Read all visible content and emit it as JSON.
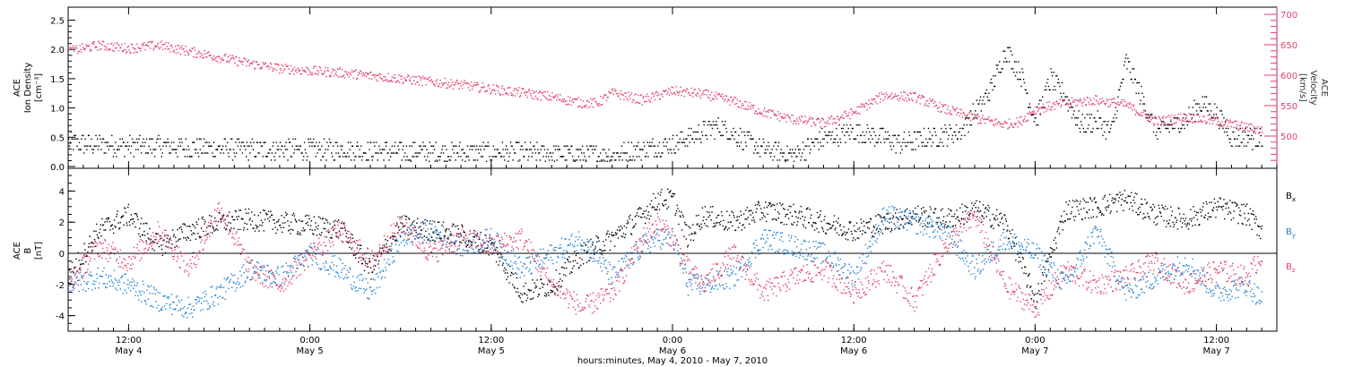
{
  "colors": {
    "black": "#000000",
    "blue": "#1f7fd4",
    "pink": "#e0406a",
    "axis": "#000000"
  },
  "chart_data": [
    {
      "type": "scatter",
      "panel": "top",
      "ylabel_lines": [
        "ACE",
        "Ion Density",
        "[cm⁻³]"
      ],
      "ylabel_right_lines": [
        "ACE",
        "Velocity",
        "[km/s]"
      ],
      "ylim": [
        0,
        2.6
      ],
      "yticks": [
        "0.0",
        "0.5",
        "1.0",
        "1.5",
        "2.0",
        "2.5"
      ],
      "ylim_right": [
        450,
        700
      ],
      "yticks_right": [
        "500",
        "550",
        "600",
        "650",
        "700"
      ],
      "xlim_hours": [
        0,
        80
      ],
      "series": [
        {
          "color": "black",
          "axis": "left",
          "keypoints": [
            [
              0,
              0.4
            ],
            [
              6,
              0.35
            ],
            [
              12,
              0.3
            ],
            [
              18,
              0.3
            ],
            [
              24,
              0.25
            ],
            [
              30,
              0.25
            ],
            [
              36,
              0.2
            ],
            [
              40,
              0.4
            ],
            [
              43,
              0.7
            ],
            [
              46,
              0.3
            ],
            [
              48,
              0.2
            ],
            [
              50,
              0.5
            ],
            [
              52,
              0.6
            ],
            [
              54,
              0.5
            ],
            [
              55,
              0.4
            ],
            [
              57,
              0.5
            ],
            [
              59,
              0.6
            ],
            [
              61,
              1.3
            ],
            [
              62,
              2.0
            ],
            [
              63,
              1.6
            ],
            [
              64,
              0.8
            ],
            [
              65,
              1.5
            ],
            [
              66,
              1.2
            ],
            [
              67,
              0.7
            ],
            [
              68,
              0.8
            ],
            [
              69,
              0.6
            ],
            [
              70,
              1.8
            ],
            [
              71,
              1.2
            ],
            [
              72,
              0.6
            ],
            [
              73,
              0.7
            ],
            [
              74,
              0.8
            ],
            [
              75,
              1.1
            ],
            [
              76,
              0.9
            ],
            [
              77,
              0.5
            ],
            [
              79,
              0.5
            ]
          ]
        },
        {
          "color": "pink",
          "axis": "right",
          "keypoints": [
            [
              0,
              640
            ],
            [
              2,
              650
            ],
            [
              4,
              645
            ],
            [
              6,
              650
            ],
            [
              8,
              640
            ],
            [
              10,
              630
            ],
            [
              12,
              620
            ],
            [
              14,
              612
            ],
            [
              16,
              608
            ],
            [
              18,
              605
            ],
            [
              20,
              600
            ],
            [
              22,
              595
            ],
            [
              24,
              590
            ],
            [
              26,
              585
            ],
            [
              28,
              578
            ],
            [
              30,
              572
            ],
            [
              32,
              565
            ],
            [
              34,
              555
            ],
            [
              35,
              555
            ],
            [
              36,
              572
            ],
            [
              38,
              560
            ],
            [
              40,
              575
            ],
            [
              42,
              570
            ],
            [
              44,
              558
            ],
            [
              46,
              540
            ],
            [
              48,
              528
            ],
            [
              50,
              522
            ],
            [
              52,
              540
            ],
            [
              54,
              568
            ],
            [
              56,
              565
            ],
            [
              58,
              545
            ],
            [
              60,
              530
            ],
            [
              62,
              520
            ],
            [
              63,
              525
            ],
            [
              64,
              545
            ],
            [
              66,
              555
            ],
            [
              68,
              560
            ],
            [
              70,
              552
            ],
            [
              72,
              525
            ],
            [
              74,
              532
            ],
            [
              76,
              525
            ],
            [
              78,
              515
            ],
            [
              79,
              510
            ]
          ]
        }
      ]
    },
    {
      "type": "scatter",
      "panel": "bottom",
      "ylabel_lines": [
        "ACE",
        "B",
        "[nT]"
      ],
      "ylim": [
        -5,
        5
      ],
      "yticks": [
        "-4",
        "-2",
        "0",
        "2",
        "4"
      ],
      "xlim_hours": [
        0,
        80
      ],
      "xticks": [
        {
          "hour": 4,
          "time": "12:00",
          "date": "May 4"
        },
        {
          "hour": 16,
          "time": "0:00",
          "date": "May 5"
        },
        {
          "hour": 28,
          "time": "12:00",
          "date": "May 5"
        },
        {
          "hour": 40,
          "time": "0:00",
          "date": "May 6"
        },
        {
          "hour": 52,
          "time": "12:00",
          "date": "May 6"
        },
        {
          "hour": 64,
          "time": "0:00",
          "date": "May 7"
        },
        {
          "hour": 76,
          "time": "12:00",
          "date": "May 7"
        }
      ],
      "xlabel": "hours:minutes, May  4, 2010 - May  7, 2010",
      "series": [
        {
          "name": "Bx",
          "color": "black",
          "keypoints": [
            [
              0,
              -1.5
            ],
            [
              2,
              1.5
            ],
            [
              4,
              2.5
            ],
            [
              6,
              0.5
            ],
            [
              8,
              1.5
            ],
            [
              10,
              2.0
            ],
            [
              12,
              2.2
            ],
            [
              14,
              2.0
            ],
            [
              16,
              1.8
            ],
            [
              18,
              1.6
            ],
            [
              20,
              -1.0
            ],
            [
              22,
              1.8
            ],
            [
              24,
              1.5
            ],
            [
              26,
              1.2
            ],
            [
              28,
              0.5
            ],
            [
              30,
              -2.5
            ],
            [
              32,
              -2.0
            ],
            [
              34,
              0.0
            ],
            [
              36,
              1.0
            ],
            [
              38,
              2.5
            ],
            [
              39,
              3.5
            ],
            [
              40,
              3.5
            ],
            [
              41,
              1.0
            ],
            [
              42,
              2.5
            ],
            [
              44,
              2.0
            ],
            [
              46,
              2.8
            ],
            [
              48,
              2.5
            ],
            [
              50,
              2.0
            ],
            [
              52,
              1.5
            ],
            [
              54,
              2.0
            ],
            [
              56,
              2.5
            ],
            [
              58,
              2.2
            ],
            [
              60,
              2.8
            ],
            [
              62,
              2.0
            ],
            [
              64,
              -3.0
            ],
            [
              66,
              2.8
            ],
            [
              68,
              3.0
            ],
            [
              70,
              3.5
            ],
            [
              72,
              2.5
            ],
            [
              74,
              2.2
            ],
            [
              76,
              3.0
            ],
            [
              78,
              2.5
            ],
            [
              79,
              1.5
            ]
          ]
        },
        {
          "name": "By",
          "color": "blue",
          "keypoints": [
            [
              0,
              -2.0
            ],
            [
              2,
              -1.5
            ],
            [
              4,
              -2.0
            ],
            [
              6,
              -3.0
            ],
            [
              8,
              -3.5
            ],
            [
              10,
              -2.5
            ],
            [
              12,
              -1.0
            ],
            [
              14,
              -1.5
            ],
            [
              16,
              0.0
            ],
            [
              18,
              -1.0
            ],
            [
              20,
              -2.5
            ],
            [
              22,
              1.0
            ],
            [
              24,
              1.5
            ],
            [
              26,
              0.5
            ],
            [
              28,
              1.0
            ],
            [
              30,
              -1.0
            ],
            [
              32,
              0.0
            ],
            [
              34,
              1.0
            ],
            [
              36,
              -1.5
            ],
            [
              38,
              0.5
            ],
            [
              39,
              1.0
            ],
            [
              40,
              1.0
            ],
            [
              41,
              -2.0
            ],
            [
              42,
              -2.0
            ],
            [
              44,
              -1.5
            ],
            [
              46,
              1.0
            ],
            [
              48,
              0.5
            ],
            [
              50,
              0.0
            ],
            [
              52,
              -1.5
            ],
            [
              54,
              2.5
            ],
            [
              56,
              2.0
            ],
            [
              58,
              1.5
            ],
            [
              60,
              -1.0
            ],
            [
              62,
              1.0
            ],
            [
              64,
              0.0
            ],
            [
              66,
              -2.0
            ],
            [
              68,
              1.5
            ],
            [
              70,
              -2.5
            ],
            [
              72,
              -1.5
            ],
            [
              74,
              -0.5
            ],
            [
              76,
              -2.5
            ],
            [
              78,
              -2.0
            ],
            [
              79,
              -3.0
            ]
          ]
        },
        {
          "name": "Bz",
          "color": "pink",
          "keypoints": [
            [
              0,
              -2.0
            ],
            [
              2,
              0.5
            ],
            [
              4,
              -0.5
            ],
            [
              6,
              1.5
            ],
            [
              8,
              -1.0
            ],
            [
              10,
              3.0
            ],
            [
              12,
              -1.0
            ],
            [
              14,
              -2.0
            ],
            [
              16,
              0.0
            ],
            [
              18,
              1.5
            ],
            [
              20,
              -0.5
            ],
            [
              22,
              2.0
            ],
            [
              24,
              0.0
            ],
            [
              26,
              1.0
            ],
            [
              28,
              0.5
            ],
            [
              30,
              1.0
            ],
            [
              32,
              -2.0
            ],
            [
              34,
              -3.5
            ],
            [
              36,
              -2.5
            ],
            [
              38,
              1.0
            ],
            [
              39,
              2.0
            ],
            [
              40,
              1.0
            ],
            [
              41,
              -1.0
            ],
            [
              42,
              -2.0
            ],
            [
              44,
              0.0
            ],
            [
              46,
              -2.5
            ],
            [
              48,
              -1.5
            ],
            [
              50,
              -1.0
            ],
            [
              52,
              -2.5
            ],
            [
              54,
              -1.0
            ],
            [
              56,
              -3.0
            ],
            [
              58,
              0.5
            ],
            [
              60,
              2.5
            ],
            [
              62,
              -2.0
            ],
            [
              64,
              -3.5
            ],
            [
              66,
              -1.0
            ],
            [
              68,
              -2.0
            ],
            [
              70,
              -1.5
            ],
            [
              72,
              -0.5
            ],
            [
              74,
              -2.0
            ],
            [
              76,
              -1.0
            ],
            [
              78,
              -1.5
            ],
            [
              79,
              0.0
            ]
          ]
        }
      ]
    }
  ]
}
